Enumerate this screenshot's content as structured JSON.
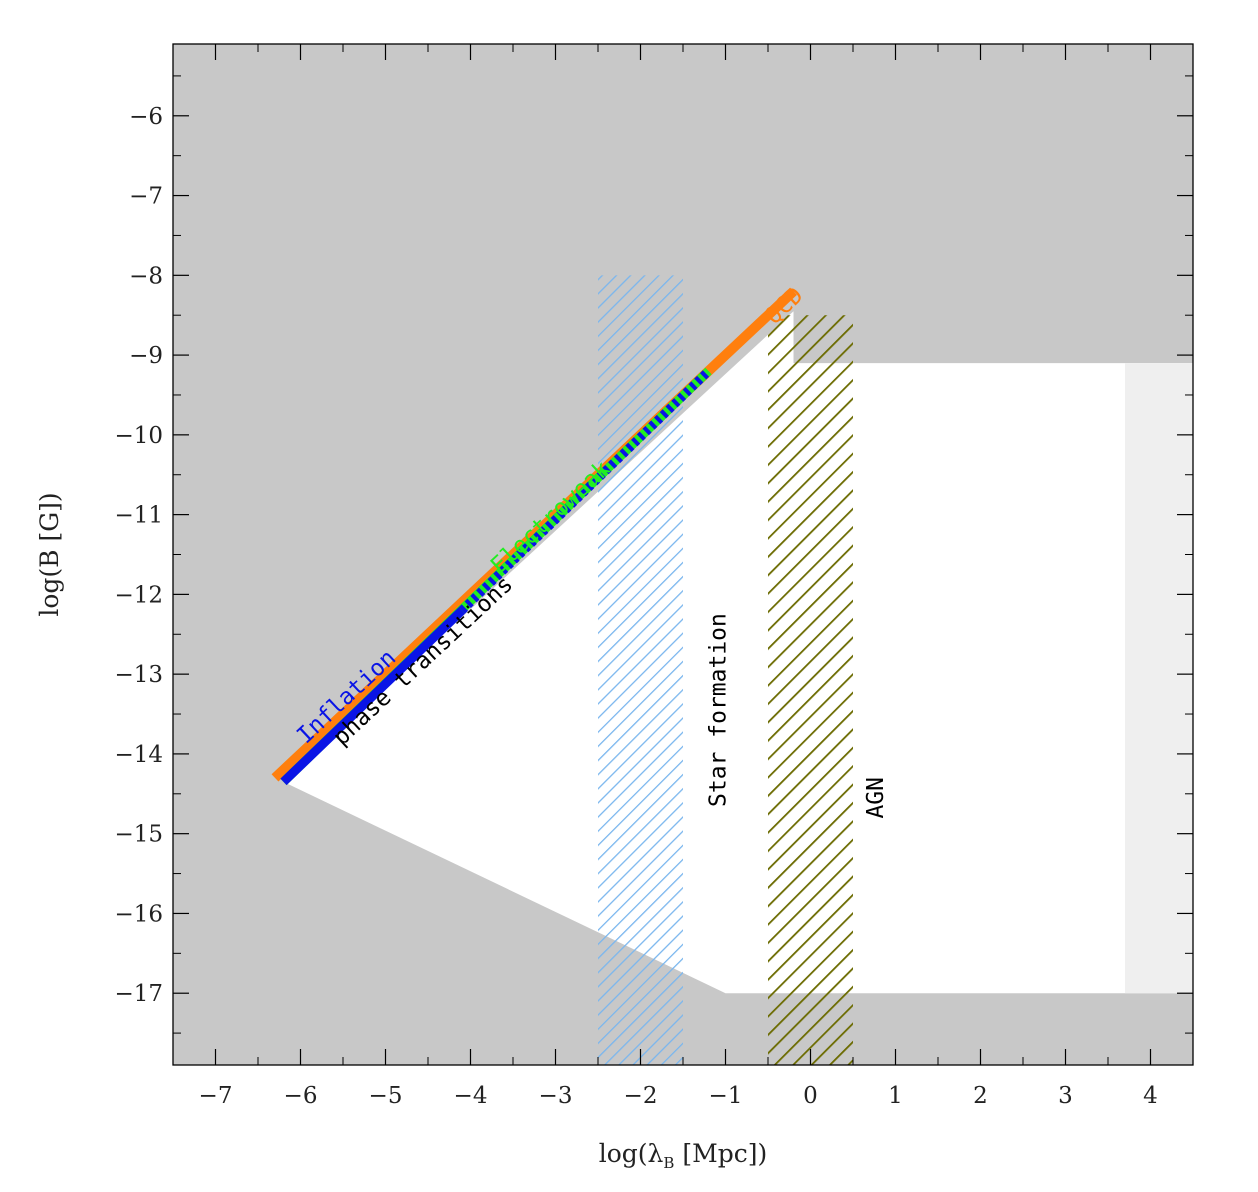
{
  "chart_data": {
    "type": "area",
    "xlabel": "log(λ",
    "xlabel_sub": "B",
    "xlabel_end": " [Mpc])",
    "ylabel": "log(B [G])",
    "xlim": [
      -7.5,
      4.5
    ],
    "ylim": [
      -17.9,
      -5.1
    ],
    "xticks": [
      -7,
      -6,
      -5,
      -4,
      -3,
      -2,
      -1,
      0,
      1,
      2,
      3,
      4
    ],
    "yticks": [
      -6,
      -7,
      -8,
      -9,
      -10,
      -11,
      -12,
      -13,
      -14,
      -15,
      -16,
      -17
    ],
    "xtick_labels": [
      "−7",
      "−6",
      "−5",
      "−4",
      "−3",
      "−2",
      "−1",
      "0",
      "1",
      "2",
      "3",
      "4"
    ],
    "ytick_labels": [
      "−6",
      "−7",
      "−8",
      "−9",
      "−10",
      "−11",
      "−12",
      "−13",
      "−14",
      "−15",
      "−16",
      "−17"
    ],
    "grid": false,
    "colors": {
      "excluded": "#c8c8c8",
      "allowed": "#ffffff",
      "light_excluded": "#efefef",
      "inflation": "#0a14e6",
      "electroweak": "#22ee22",
      "qcd": "#ff7f0e",
      "star_formation": "#7ab6ee",
      "agn": "#6b6b00"
    },
    "regions": {
      "allowed": [
        [
          -6.2,
          -14.35
        ],
        [
          -0.2,
          -8.45
        ],
        [
          -0.2,
          -9.1
        ],
        [
          4.5,
          -9.1
        ],
        [
          4.5,
          -17.0
        ],
        [
          -1.0,
          -17.0
        ]
      ],
      "light_excluded": {
        "x": [
          3.7,
          4.5
        ],
        "y": [
          -17.0,
          -9.1
        ]
      }
    },
    "series": [
      {
        "name": "QCD",
        "x": [
          -6.3,
          -0.2
        ],
        "y": [
          -14.3,
          -8.2
        ]
      },
      {
        "name": "Electroweak",
        "x": [
          -6.2,
          -1.2
        ],
        "y": [
          -14.35,
          -9.2
        ]
      },
      {
        "name": "Inflation",
        "x": [
          -6.2,
          -4.1
        ],
        "y": [
          -14.35,
          -12.2
        ]
      },
      {
        "name": "phase transitions",
        "x": [
          -4.1,
          -1.2
        ],
        "y": [
          -12.2,
          -9.2
        ]
      }
    ],
    "hatched_bands": [
      {
        "name": "Star formation",
        "x": [
          -2.5,
          -1.5
        ],
        "y": [
          -17.9,
          -8.0
        ]
      },
      {
        "name": "AGN",
        "x": [
          -0.5,
          0.5
        ],
        "y": [
          -17.9,
          -8.5
        ]
      }
    ],
    "annotations": [
      {
        "text": "Inflation",
        "x": -5.4,
        "y": -13.35,
        "angle": -43,
        "color": "#0a14e6"
      },
      {
        "text": "phase transitions",
        "x": -4.5,
        "y": -12.9,
        "angle": -43,
        "color": "#000000"
      },
      {
        "text": "Electroweak",
        "x": -3.0,
        "y": -11.1,
        "angle": -43,
        "color": "#22ee22"
      },
      {
        "text": "QCD",
        "x": -0.25,
        "y": -8.45,
        "angle": -43,
        "color": "#ff7f0e"
      },
      {
        "text": "Star formation",
        "x": -1.0,
        "y": -13.45,
        "angle": -90,
        "color": "#000000"
      },
      {
        "text": "AGN",
        "x": 0.85,
        "y": -14.55,
        "angle": -90,
        "color": "#000000"
      }
    ]
  }
}
